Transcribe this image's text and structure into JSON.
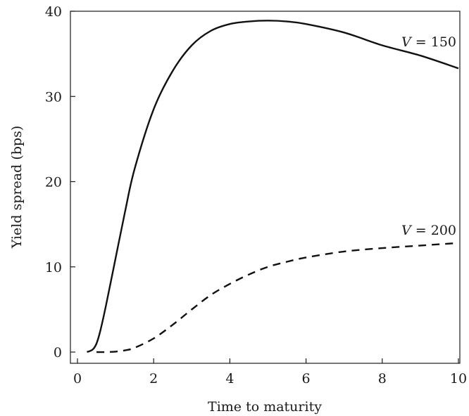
{
  "chart_data": {
    "type": "line",
    "title": "",
    "xlabel": "Time to maturity",
    "ylabel": "Yield spread (bps)",
    "xlim": [
      0,
      10
    ],
    "ylim": [
      0,
      40
    ],
    "xticks": [
      0,
      2,
      4,
      6,
      8,
      10
    ],
    "yticks": [
      0,
      10,
      20,
      30,
      40
    ],
    "grid": false,
    "legend": "none",
    "series": [
      {
        "name": "V = 150",
        "label_var": "V",
        "label_rest": " = 150",
        "style": "solid",
        "color": "#111111",
        "x": [
          0.25,
          0.4,
          0.5,
          0.6,
          0.75,
          1.0,
          1.25,
          1.5,
          2.0,
          2.5,
          3.0,
          3.5,
          4.0,
          4.5,
          5.0,
          5.5,
          6.0,
          7.0,
          8.0,
          9.0,
          10.0
        ],
        "y": [
          0.0,
          0.3,
          1.0,
          2.5,
          5.5,
          11.0,
          16.5,
          21.5,
          28.5,
          33.0,
          36.0,
          37.7,
          38.5,
          38.8,
          38.9,
          38.8,
          38.5,
          37.5,
          36.0,
          34.8,
          33.3
        ]
      },
      {
        "name": "V = 200",
        "label_var": "V",
        "label_rest": " = 200",
        "style": "dashed",
        "color": "#111111",
        "x": [
          0.5,
          0.75,
          1.0,
          1.25,
          1.5,
          2.0,
          2.5,
          3.0,
          3.5,
          4.0,
          4.5,
          5.0,
          5.5,
          6.0,
          7.0,
          8.0,
          9.0,
          10.0
        ],
        "y": [
          0.0,
          0.0,
          0.05,
          0.2,
          0.5,
          1.6,
          3.2,
          5.0,
          6.7,
          8.0,
          9.1,
          10.0,
          10.6,
          11.1,
          11.8,
          12.2,
          12.5,
          12.8
        ]
      }
    ]
  }
}
